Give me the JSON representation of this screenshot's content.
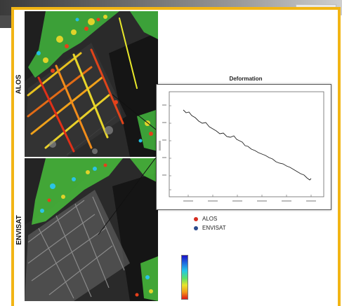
{
  "panels": {
    "top_label": "ALOS",
    "bottom_label": "ENVISAT"
  },
  "plot": {
    "title": "Deformation"
  },
  "legend": {
    "items": [
      {
        "label": "ALOS",
        "color": "#d62d20"
      },
      {
        "label": "ENVISAT",
        "color": "#2a4b8d"
      }
    ]
  },
  "colorbar": {
    "colors": [
      "#1a10c8",
      "#1f6fe0",
      "#23c7e8",
      "#58e06a",
      "#e8e42b",
      "#f29a1b",
      "#e01818"
    ]
  },
  "colors": {
    "frame_accent": "#f2b514"
  }
}
